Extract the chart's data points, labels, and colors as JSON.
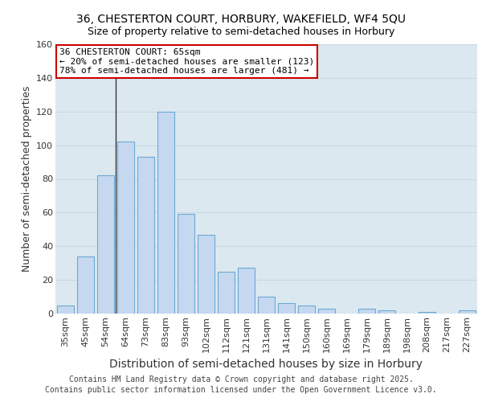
{
  "title_line1": "36, CHESTERTON COURT, HORBURY, WAKEFIELD, WF4 5QU",
  "title_line2": "Size of property relative to semi-detached houses in Horbury",
  "xlabel": "Distribution of semi-detached houses by size in Horbury",
  "ylabel": "Number of semi-detached properties",
  "categories": [
    "35sqm",
    "45sqm",
    "54sqm",
    "64sqm",
    "73sqm",
    "83sqm",
    "93sqm",
    "102sqm",
    "112sqm",
    "121sqm",
    "131sqm",
    "141sqm",
    "150sqm",
    "160sqm",
    "169sqm",
    "179sqm",
    "189sqm",
    "198sqm",
    "208sqm",
    "217sqm",
    "227sqm"
  ],
  "values": [
    5,
    34,
    82,
    102,
    93,
    120,
    59,
    47,
    25,
    27,
    10,
    6,
    5,
    3,
    0,
    3,
    2,
    0,
    1,
    0,
    2
  ],
  "bar_color": "#c5d8f0",
  "bar_edge_color": "#6aaad4",
  "vline_index": 2.5,
  "annotation_title": "36 CHESTERTON COURT: 65sqm",
  "annotation_line1": "← 20% of semi-detached houses are smaller (123)",
  "annotation_line2": "78% of semi-detached houses are larger (481) →",
  "annotation_box_facecolor": "#ffffff",
  "annotation_box_edgecolor": "#cc0000",
  "ylim": [
    0,
    160
  ],
  "yticks": [
    0,
    20,
    40,
    60,
    80,
    100,
    120,
    140,
    160
  ],
  "grid_color": "#c8d8e8",
  "background_color": "#dce8f0",
  "footer": "Contains HM Land Registry data © Crown copyright and database right 2025.\nContains public sector information licensed under the Open Government Licence v3.0.",
  "title_fontsize": 10,
  "subtitle_fontsize": 9,
  "xlabel_fontsize": 10,
  "ylabel_fontsize": 9,
  "tick_fontsize": 8,
  "annotation_fontsize": 8,
  "footer_fontsize": 7
}
